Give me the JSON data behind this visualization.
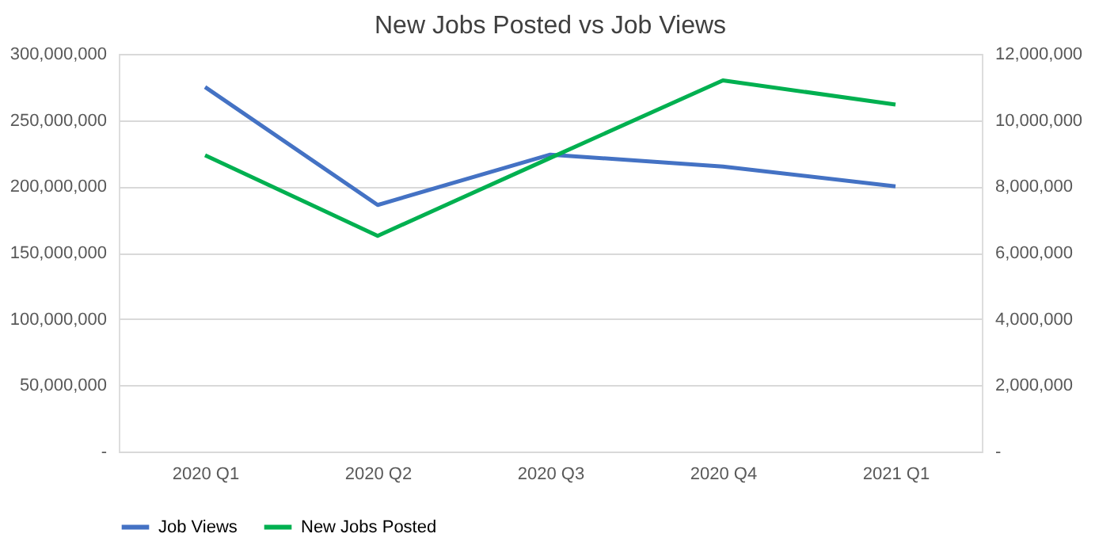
{
  "chart_data": {
    "type": "line",
    "title": "New Jobs Posted vs Job Views",
    "categories": [
      "2020 Q1",
      "2020 Q2",
      "2020 Q3",
      "2020 Q4",
      "2021 Q1"
    ],
    "series": [
      {
        "name": "Job Views",
        "color": "#4472c4",
        "values": [
          275000000,
          186000000,
          224000000,
          215000000,
          200000000
        ]
      },
      {
        "name": "New Jobs Posted",
        "color": "#00b050",
        "axis": "y2",
        "values": [
          8940000,
          6510000,
          8860000,
          11200000,
          10470000
        ]
      }
    ],
    "ylim": [
      0,
      300000000
    ],
    "yticks": [
      {
        "value": 0,
        "label": "-"
      },
      {
        "value": 50000000,
        "label": "50,000,000"
      },
      {
        "value": 100000000,
        "label": "100,000,000"
      },
      {
        "value": 150000000,
        "label": "150,000,000"
      },
      {
        "value": 200000000,
        "label": "200,000,000"
      },
      {
        "value": 250000000,
        "label": "250,000,000"
      },
      {
        "value": 300000000,
        "label": "300,000,000"
      }
    ],
    "y2lim": [
      0,
      12000000
    ],
    "y2ticks": [
      {
        "value": 0,
        "label": "-"
      },
      {
        "value": 2000000,
        "label": "2,000,000"
      },
      {
        "value": 4000000,
        "label": "4,000,000"
      },
      {
        "value": 6000000,
        "label": "6,000,000"
      },
      {
        "value": 8000000,
        "label": "8,000,000"
      },
      {
        "value": 10000000,
        "label": "10,000,000"
      },
      {
        "value": 12000000,
        "label": "12,000,000"
      }
    ],
    "grid": "y",
    "legend": "bottom",
    "line_style": "solid",
    "marker": "none"
  }
}
